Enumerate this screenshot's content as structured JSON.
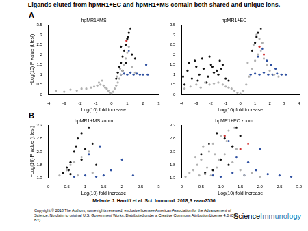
{
  "title": "Ligands eluted from hpMR1+EC and hpMR1+MS contain both shared and unique ions.",
  "panels": [
    "A",
    "B"
  ],
  "citation": "Melanie J. Harriff et al. Sci. Immunol. 2018;3:eaao2556",
  "copyright": "Copyright © 2018 The Authors, some rights reserved; exclusive licensee American Association for the Advancement of Science. No claim to original U.S. Government Works. Distributed under a Creative Commons Attribution License 4.0 (CC BY).",
  "journal": [
    "Science",
    "Immunology"
  ],
  "chart_data": [
    {
      "type": "scatter",
      "title": "hpMR1+MS",
      "xlabel": "Log(10) fold increase",
      "ylabel": "−Log(10) P value (t test)",
      "grid": false,
      "xlim": [
        -4,
        3
      ],
      "xticks": [
        -4,
        -3,
        -2,
        -1,
        0,
        1,
        2,
        3
      ],
      "ylim": [
        0,
        3.5
      ],
      "yticks": [
        0,
        0.5,
        1,
        1.5,
        2,
        2.5,
        3,
        3.5
      ],
      "series": [
        {
          "color": "#b0b0b0",
          "x": [
            -3.5,
            -3,
            -2.6,
            -2.2,
            -1.9,
            -1.6,
            -1.3,
            -1.1,
            -0.9,
            -0.7,
            -0.5,
            -0.4,
            -0.3,
            -0.2,
            -0.1,
            0,
            0.1,
            0.2,
            0.3,
            0.4,
            0.5,
            0.6,
            0.7,
            0.8,
            0.9,
            1.0,
            1.1,
            1.3,
            1.5,
            -0.6,
            -0.8,
            0.35,
            0.55
          ],
          "values": [
            0.2,
            0.15,
            0.25,
            0.2,
            0.3,
            0.3,
            0.35,
            0.4,
            0.45,
            0.5,
            0.45,
            0.35,
            0.3,
            0.2,
            0.1,
            0.05,
            0.15,
            0.3,
            0.45,
            0.6,
            0.8,
            1.0,
            1.2,
            1.5,
            1.8,
            2.1,
            2.4,
            1.4,
            1.1,
            0.7,
            0.6,
            0.9,
            1.3
          ]
        },
        {
          "color": "#111111",
          "x": [
            0.3,
            0.4,
            0.5,
            0.6,
            0.7,
            0.8,
            0.9,
            1.0,
            1.1,
            1.2,
            0.7,
            0.9,
            1.3,
            1.5,
            0.6,
            1.05
          ],
          "values": [
            0.8,
            1.1,
            1.4,
            1.6,
            1.9,
            2.2,
            2.5,
            2.8,
            3.1,
            3.3,
            1.2,
            1.6,
            2.0,
            1.8,
            2.4,
            2.9
          ]
        },
        {
          "color": "#2d4fa0",
          "x": [
            0.6,
            0.8,
            1.0,
            1.2,
            1.4,
            1.6,
            1.8,
            2.0,
            2.3,
            0.9,
            1.1,
            2.2
          ],
          "values": [
            1.0,
            1.05,
            1.0,
            1.1,
            1.0,
            1.05,
            1.0,
            1.0,
            1.0,
            1.6,
            2.2,
            1.5
          ]
        },
        {
          "color": "#d03030",
          "x": [
            0.95
          ],
          "values": [
            2.7
          ]
        }
      ]
    },
    {
      "type": "scatter",
      "title": "hpMR1+EC",
      "xlabel": "Log(10) fold increase",
      "grid": false,
      "xlim": [
        -4,
        4
      ],
      "xticks": [
        -4,
        -3,
        -2,
        -1,
        0,
        1,
        2,
        3,
        4
      ],
      "ylim": [
        0,
        3.5
      ],
      "yticks": [
        0,
        0.5,
        1,
        1.5,
        2,
        2.5,
        3,
        3.5
      ],
      "series": [
        {
          "color": "#b0b0b0",
          "x": [
            -3.8,
            -3.4,
            -3,
            -2.7,
            -2.4,
            -2.1,
            -1.8,
            -1.5,
            -1.2,
            -1,
            -0.8,
            -0.6,
            -0.4,
            -0.2,
            0,
            0.2,
            0.4,
            0.6,
            0.8,
            1,
            1.2,
            1.4,
            1.6,
            1.8,
            2,
            2.3,
            2.6,
            0.5,
            0.9,
            1.3,
            1.1,
            1.5
          ],
          "values": [
            0.3,
            0.4,
            0.5,
            0.35,
            0.6,
            0.5,
            0.55,
            0.6,
            0.5,
            0.4,
            0.35,
            0.3,
            0.2,
            0.1,
            0.05,
            0.2,
            0.5,
            0.9,
            1.3,
            1.7,
            2.0,
            2.2,
            1.8,
            1.5,
            1.2,
            1.0,
            0.9,
            1.6,
            2.5,
            2.8,
            3.0,
            2.6
          ]
        },
        {
          "color": "#111111",
          "x": [
            -3.9,
            -3.6,
            -3.3,
            -3,
            -2.8,
            -2.5,
            -2.2,
            -2,
            -1.8,
            -1.5,
            -1.3,
            -1,
            -0.8,
            -3.5,
            -3.1,
            -2.6,
            -2.3,
            -1.9,
            -1.6,
            -1.2,
            -3.8,
            -2.9,
            -2.1,
            -1.4,
            0.8,
            1.0,
            1.2,
            1.4,
            1.1
          ],
          "values": [
            0.9,
            1.2,
            0.8,
            1.4,
            1.0,
            1.3,
            0.9,
            1.5,
            1.1,
            1.0,
            1.3,
            0.8,
            0.7,
            1.6,
            1.7,
            1.8,
            0.6,
            1.4,
            1.2,
            1.5,
            0.5,
            0.7,
            1.9,
            1.7,
            2.2,
            2.6,
            3.1,
            3.3,
            2.9
          ]
        },
        {
          "color": "#2d4fa0",
          "x": [
            0.7,
            1.0,
            1.3,
            1.6,
            1.9,
            2.2,
            2.5,
            2.8,
            3.1,
            1.2,
            1.5,
            1.8,
            2.1,
            2.4
          ],
          "values": [
            1.0,
            1.05,
            1.0,
            1.1,
            1.0,
            1.0,
            1.05,
            1.0,
            1.0,
            1.9,
            2.3,
            1.7,
            1.5,
            1.3
          ]
        },
        {
          "color": "#d03030",
          "x": [
            1.3,
            1.6
          ],
          "values": [
            2.4,
            2.0
          ]
        }
      ]
    },
    {
      "type": "scatter",
      "title": "hpMR1+MS zoom",
      "xlabel": "Log(10) fold increase",
      "ylabel": "−Log(10) P value (t test)",
      "grid": false,
      "xlim": [
        0,
        3
      ],
      "xticks": [
        0,
        0.5,
        1,
        1.5,
        2,
        2.5,
        3
      ],
      "ylim": [
        1.3,
        3.3
      ],
      "yticks": [
        1.3,
        1.8,
        2.3,
        2.8,
        3.3
      ],
      "series": [
        {
          "color": "#b0b0b0",
          "x": [
            0.3,
            0.5,
            0.7,
            0.9,
            1.1,
            1.2,
            0.6,
            0.8
          ],
          "values": [
            1.4,
            1.6,
            1.9,
            2.1,
            2.3,
            1.5,
            1.8,
            1.4
          ]
        },
        {
          "color": "#111111",
          "x": [
            0.4,
            0.5,
            0.6,
            0.7,
            0.75,
            0.8,
            0.9,
            1.0,
            1.1,
            1.2,
            0.6,
            0.9,
            1.3,
            0.55
          ],
          "values": [
            1.5,
            1.7,
            1.9,
            2.3,
            2.5,
            2.8,
            3.0,
            2.4,
            3.2,
            2.6,
            1.45,
            2.0,
            1.8,
            1.6
          ]
        },
        {
          "color": "#2d4fa0",
          "x": [
            0.7,
            1.0,
            1.3,
            1.5,
            1.7,
            2.0,
            2.3,
            1.1,
            1.4
          ],
          "values": [
            1.35,
            1.4,
            1.35,
            1.4,
            1.6,
            2.0,
            1.4,
            2.2,
            2.5
          ]
        }
      ]
    },
    {
      "type": "scatter",
      "title": "hpMR1+EC zoom",
      "xlabel": "Log(10) fold increase",
      "grid": false,
      "xlim": [
        0,
        3
      ],
      "xticks": [
        0,
        0.5,
        {
          "value": 1,
          "label": "1.0"
        },
        1.5,
        {
          "value": 2,
          "label": "2.0"
        },
        2.5,
        {
          "value": 3,
          "label": "3.0"
        }
      ],
      "ylim": [
        1.3,
        3.3
      ],
      "yticks": [
        1.3,
        1.8,
        2.3,
        2.8,
        3.3
      ],
      "series": [
        {
          "color": "#b0b0b0",
          "x": [
            0.1,
            0.2,
            0.3,
            0.4,
            0.5,
            0.6,
            0.7,
            0.8,
            0.9,
            1.0,
            1.1,
            1.2,
            1.3,
            1.4,
            1.5,
            1.6,
            1.8,
            2.0,
            0.35,
            0.55,
            0.75,
            0.95,
            1.15,
            1.35,
            0.45,
            0.65,
            0.85
          ],
          "values": [
            1.35,
            1.5,
            1.6,
            1.8,
            2.0,
            1.45,
            2.3,
            2.6,
            1.7,
            2.9,
            2.2,
            3.1,
            1.9,
            2.4,
            1.6,
            1.4,
            1.5,
            1.35,
            2.1,
            2.5,
            1.4,
            2.0,
            2.7,
            3.2,
            1.4,
            1.7,
            2.2
          ]
        },
        {
          "color": "#111111",
          "x": [
            0.5,
            0.7,
            0.9,
            1.1,
            1.3,
            1.5,
            0.8,
            1.0,
            1.2,
            1.4,
            0.6
          ],
          "values": [
            2.2,
            2.6,
            3.0,
            2.8,
            2.5,
            2.9,
            1.6,
            2.0,
            1.8,
            3.2,
            1.5
          ]
        },
        {
          "color": "#2d4fa0",
          "x": [
            0.8,
            1.0,
            1.3,
            1.6,
            1.9,
            2.2,
            2.5,
            2.8,
            1.4,
            1.7,
            2.0,
            1.2
          ],
          "values": [
            1.4,
            1.35,
            1.5,
            1.4,
            1.6,
            1.45,
            1.4,
            1.35,
            2.1,
            1.9,
            2.4,
            2.7
          ]
        },
        {
          "color": "#d03030",
          "x": [
            1.1,
            1.5,
            1.7
          ],
          "values": [
            2.9,
            2.4,
            2.6
          ]
        }
      ]
    }
  ]
}
